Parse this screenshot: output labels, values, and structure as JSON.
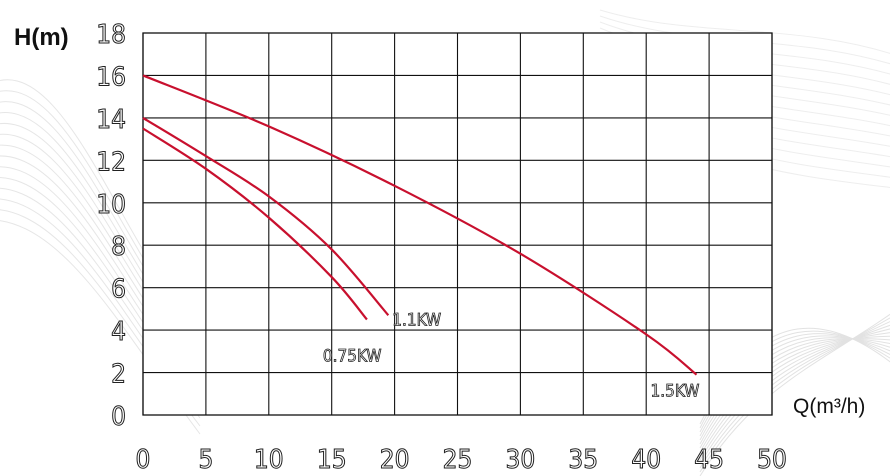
{
  "chart_data": {
    "type": "line",
    "ylabel": "H(m)",
    "xlabel": "Q(m³/h)",
    "xlim": [
      0,
      50
    ],
    "ylim": [
      0,
      18
    ],
    "x_ticks": [
      "0",
      "5",
      "10",
      "15",
      "20",
      "25",
      "30",
      "35",
      "40",
      "45",
      "50"
    ],
    "y_ticks": [
      "0",
      "2",
      "4",
      "6",
      "8",
      "10",
      "12",
      "14",
      "16",
      "18"
    ],
    "grid": true,
    "line_color": "#c8102e",
    "series": [
      {
        "name": "0.75KW",
        "x": [
          0,
          5,
          10,
          15,
          17.8
        ],
        "y": [
          13.5,
          11.6,
          9.3,
          6.5,
          4.5
        ]
      },
      {
        "name": "1.1KW",
        "x": [
          0,
          5,
          10,
          15,
          19.5
        ],
        "y": [
          14,
          12.2,
          10.3,
          7.8,
          4.7
        ]
      },
      {
        "name": "1.5KW",
        "x": [
          0,
          10,
          20,
          30,
          40,
          44
        ],
        "y": [
          16,
          13.6,
          10.8,
          7.6,
          3.8,
          1.9
        ]
      }
    ]
  }
}
